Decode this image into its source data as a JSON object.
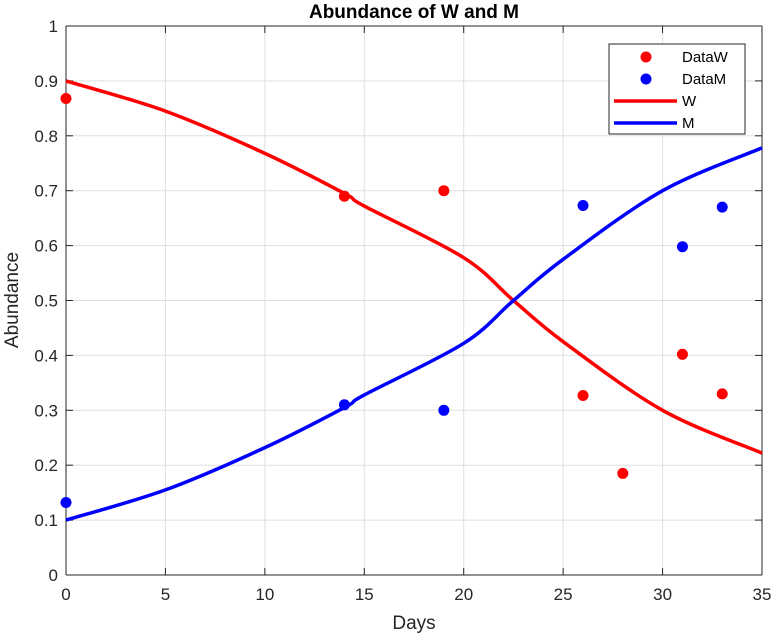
{
  "chart_data": {
    "type": "scatter",
    "title": "Abundance of W and M",
    "xlabel": "Days",
    "ylabel": "Abundance",
    "xlim": [
      0,
      35
    ],
    "ylim": [
      0,
      1
    ],
    "xticks": [
      0,
      5,
      10,
      15,
      20,
      25,
      30,
      35
    ],
    "yticks": [
      0,
      0.1,
      0.2,
      0.3,
      0.4,
      0.5,
      0.6,
      0.7,
      0.8,
      0.9,
      1
    ],
    "ytick_labels": [
      "0",
      "0.1",
      "0.2",
      "0.3",
      "0.4",
      "0.5",
      "0.6",
      "0.7",
      "0.8",
      "0.9",
      "1"
    ],
    "grid": true,
    "legend_position": "top-right",
    "series": [
      {
        "name": "DataW",
        "kind": "scatter",
        "color": "#ff0000",
        "x": [
          0,
          14,
          19,
          26,
          28,
          31,
          33
        ],
        "y": [
          0.868,
          0.69,
          0.7,
          0.327,
          0.185,
          0.402,
          0.33
        ]
      },
      {
        "name": "DataM",
        "kind": "scatter",
        "color": "#0000ff",
        "x": [
          0,
          14,
          19,
          26,
          31,
          33
        ],
        "y": [
          0.132,
          0.31,
          0.3,
          0.673,
          0.598,
          0.67
        ]
      },
      {
        "name": "W",
        "kind": "line",
        "color": "#ff0000",
        "x": [
          0,
          5,
          10,
          14,
          15,
          20,
          22.5,
          25,
          30,
          35
        ],
        "y": [
          0.9,
          0.845,
          0.768,
          0.695,
          0.672,
          0.578,
          0.5,
          0.425,
          0.3,
          0.222
        ]
      },
      {
        "name": "M",
        "kind": "line",
        "color": "#0000ff",
        "x": [
          0,
          5,
          10,
          14,
          15,
          20,
          22.5,
          25,
          30,
          35
        ],
        "y": [
          0.1,
          0.155,
          0.232,
          0.305,
          0.328,
          0.422,
          0.5,
          0.575,
          0.7,
          0.778
        ]
      }
    ]
  }
}
